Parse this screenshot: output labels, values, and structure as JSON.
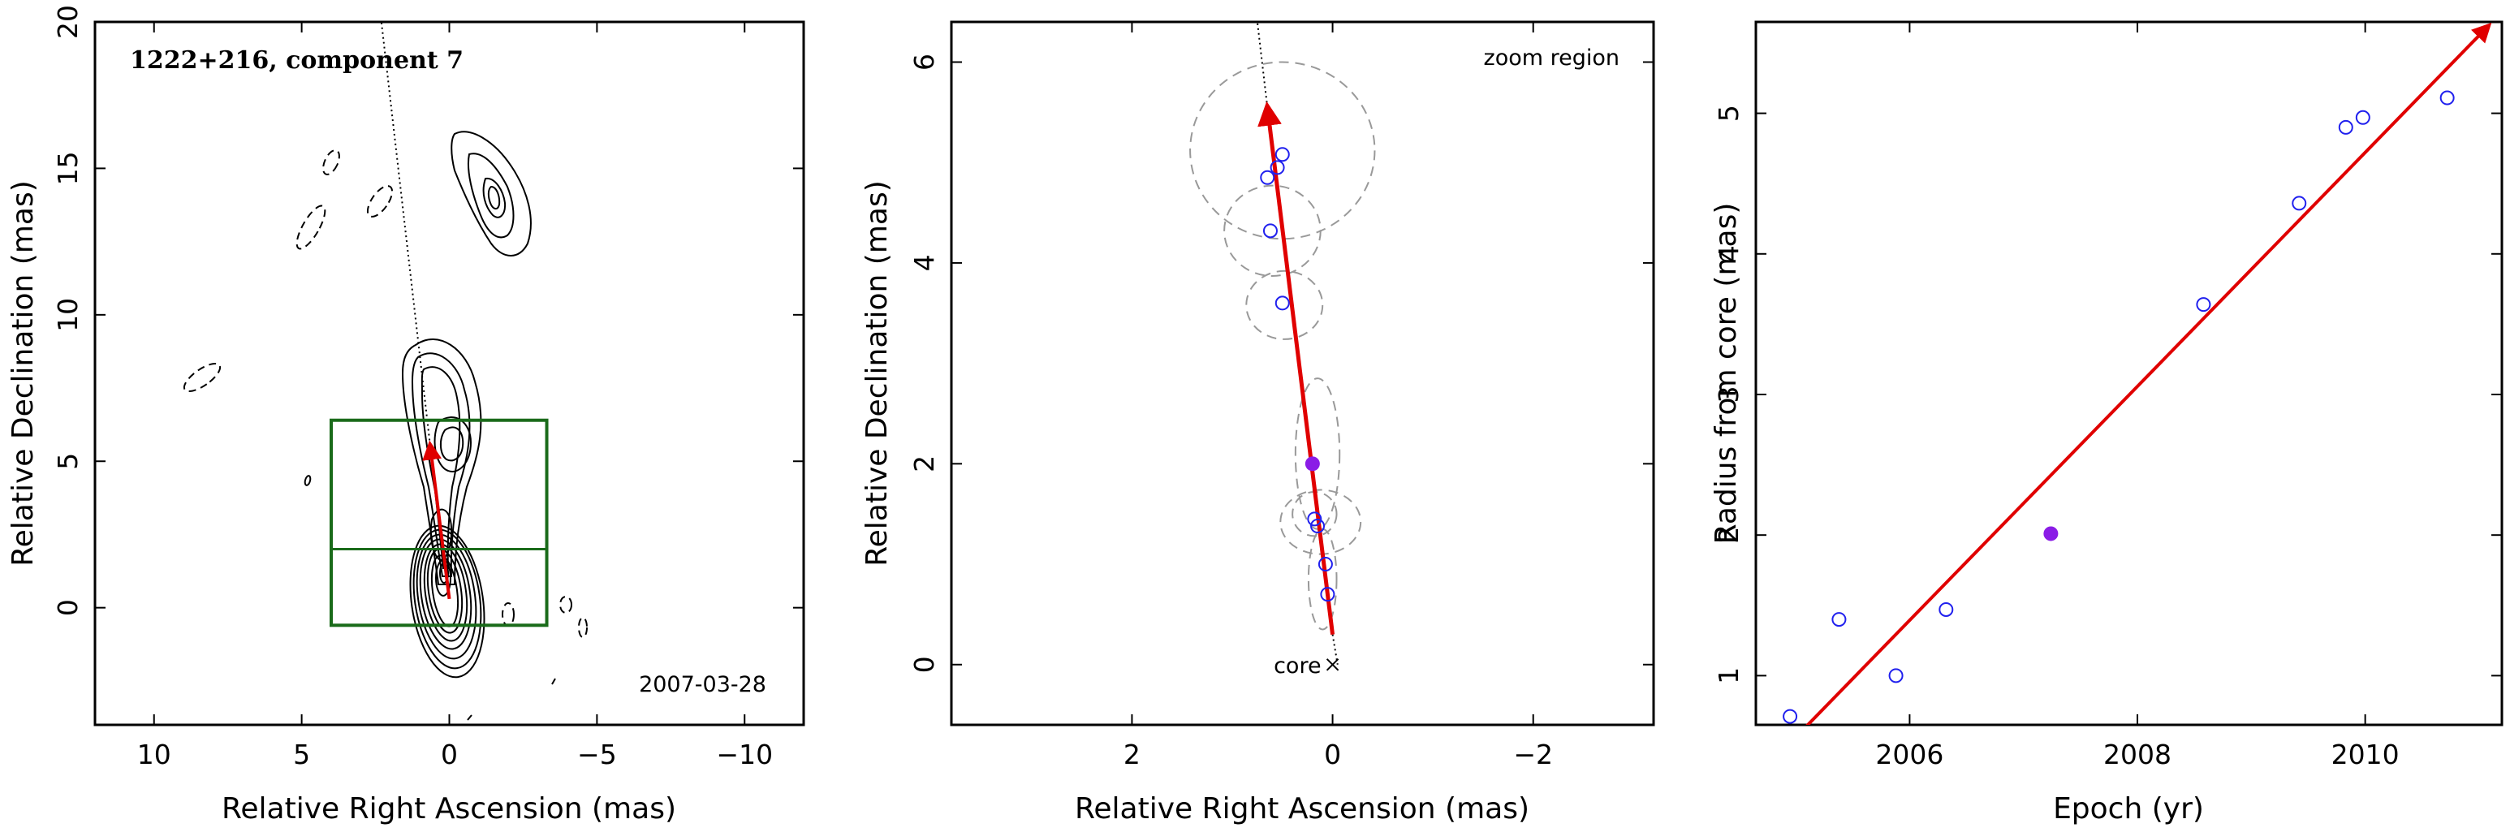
{
  "chart_data": [
    {
      "type": "contour",
      "title": "1222+216, component 7",
      "date_label": "2007-03-28",
      "xlabel": "Relative Right Ascension (mas)",
      "ylabel": "Relative Declination (mas)",
      "xlim": [
        12,
        -12
      ],
      "ylim": [
        -4,
        20
      ],
      "xticks": [
        10,
        5,
        0,
        -5,
        -10
      ],
      "xtick_labels": [
        "10",
        "5",
        "0",
        "−5",
        "−10"
      ],
      "yticks": [
        0,
        5,
        10,
        15,
        20
      ],
      "ytick_labels": [
        "0",
        "5",
        "10",
        "15",
        "20"
      ],
      "contour_color": "#000000",
      "zoom_box": {
        "ra": [
          4,
          -3.3
        ],
        "dec": [
          -0.6,
          6.4
        ],
        "midline_dec": 2.0,
        "color": "#1a6b1a"
      },
      "trajectory": {
        "from": [
          0.0,
          0.3
        ],
        "to": [
          0.65,
          5.55
        ],
        "color": "#e00000"
      },
      "extension_line": [
        [
          0.65,
          5.55
        ],
        [
          2.3,
          20
        ]
      ]
    },
    {
      "type": "scatter",
      "title": "",
      "note": "zoom region",
      "core_label": "core",
      "core_position": [
        0.0,
        0.0
      ],
      "xlabel": "Relative Right Ascension (mas)",
      "ylabel": "Relative Declination (mas)",
      "xlim": [
        3.8,
        -3.2
      ],
      "ylim": [
        -0.6,
        6.4
      ],
      "xticks": [
        2,
        0,
        -2
      ],
      "xtick_labels": [
        "2",
        "0",
        "−2"
      ],
      "yticks": [
        0,
        2,
        4,
        6
      ],
      "ytick_labels": [
        "0",
        "2",
        "4",
        "6"
      ],
      "points_open": [
        [
          0.05,
          0.7
        ],
        [
          0.07,
          1.0
        ],
        [
          0.15,
          1.38
        ],
        [
          0.18,
          1.45
        ],
        [
          0.5,
          3.6
        ],
        [
          0.62,
          4.32
        ],
        [
          0.65,
          4.85
        ],
        [
          0.55,
          4.95
        ],
        [
          0.5,
          5.08
        ]
      ],
      "point_filled": [
        0.2,
        2.0
      ],
      "error_ellipses": [
        [
          0.1,
          0.85,
          0.14,
          0.5
        ],
        [
          0.12,
          1.42,
          0.4,
          0.32
        ],
        [
          0.18,
          1.5,
          0.22,
          0.22
        ],
        [
          0.15,
          2.1,
          0.22,
          0.75
        ],
        [
          0.48,
          3.58,
          0.38,
          0.34
        ],
        [
          0.6,
          4.32,
          0.48,
          0.45
        ],
        [
          0.5,
          5.12,
          0.92,
          0.88
        ]
      ],
      "trajectory": {
        "from": [
          0.0,
          0.3
        ],
        "to": [
          0.65,
          5.55
        ],
        "color": "#e00000"
      },
      "extension_line": [
        [
          0.0,
          0.3
        ],
        [
          -0.05,
          0.0
        ],
        [
          0.75,
          6.4
        ]
      ],
      "point_color": "#2020ee",
      "filled_color": "#8a1ce6"
    },
    {
      "type": "scatter",
      "title": "",
      "xlabel": "Epoch (yr)",
      "ylabel": "Radius from core (mas)",
      "xlim": [
        2004.65,
        2011.2
      ],
      "ylim": [
        0.65,
        5.65
      ],
      "xticks": [
        2006,
        2008,
        2010
      ],
      "xtick_labels": [
        "2006",
        "2008",
        "2010"
      ],
      "yticks": [
        1,
        2,
        3,
        4,
        5
      ],
      "ytick_labels": [
        "1",
        "2",
        "3",
        "4",
        "5"
      ],
      "points_open": [
        [
          2004.95,
          0.71
        ],
        [
          2005.38,
          1.4
        ],
        [
          2005.88,
          1.0
        ],
        [
          2006.32,
          1.47
        ],
        [
          2008.58,
          3.64
        ],
        [
          2009.42,
          4.36
        ],
        [
          2009.83,
          4.9
        ],
        [
          2009.98,
          4.97
        ],
        [
          2010.72,
          5.11
        ]
      ],
      "point_filled": [
        2007.24,
        2.01
      ],
      "fit_line": {
        "from": [
          2005.07,
          0.62
        ],
        "to": [
          2011.08,
          5.62
        ],
        "color": "#e00000"
      },
      "point_color": "#2020ee",
      "filled_color": "#8a1ce6"
    }
  ]
}
